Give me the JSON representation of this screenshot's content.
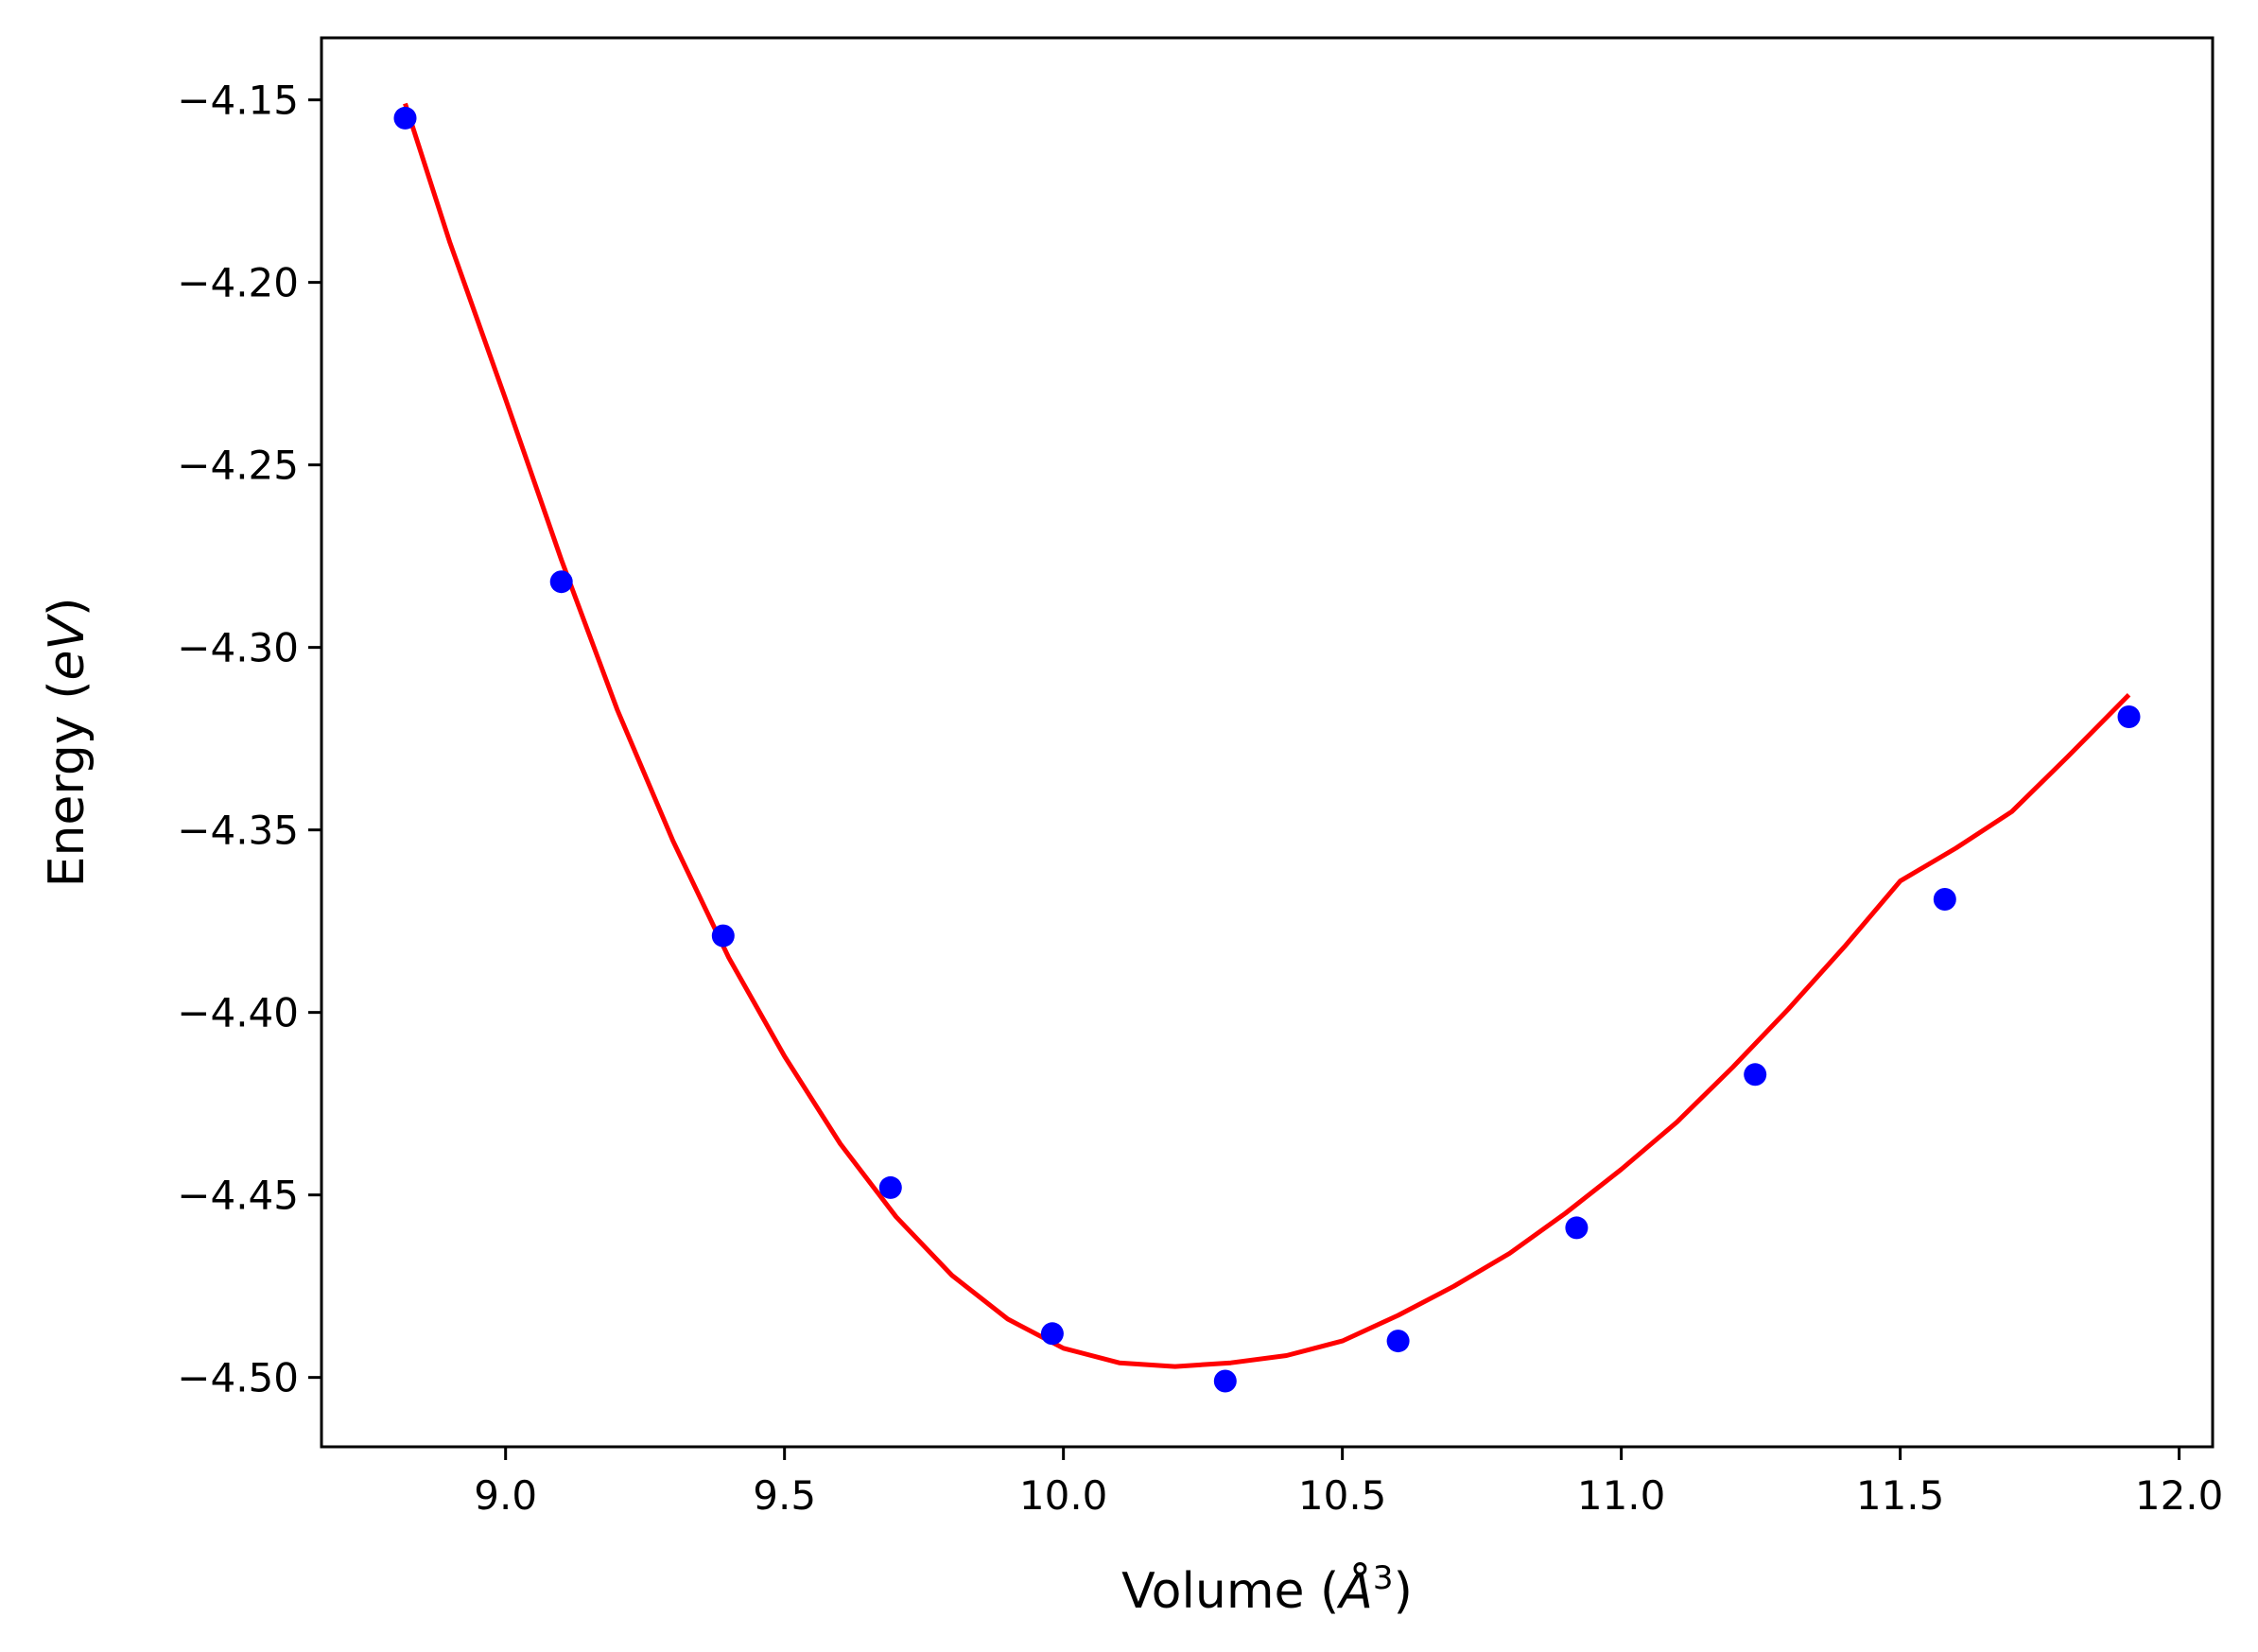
{
  "chart_data": {
    "type": "scatter",
    "xlabel_main": "Volume (",
    "xlabel_unit": "Å",
    "xlabel_exp": "3",
    "xlabel_close": ")",
    "ylabel_main": "Energy (",
    "ylabel_unit": "eV",
    "ylabel_close": ")",
    "xlim": [
      8.67,
      12.06
    ],
    "ylim": [
      -4.519,
      -4.133
    ],
    "xticks": [
      9.0,
      9.5,
      10.0,
      10.5,
      11.0,
      11.5,
      12.0
    ],
    "xtick_labels": [
      "9.0",
      "9.5",
      "10.0",
      "10.5",
      "11.0",
      "11.5",
      "12.0"
    ],
    "yticks": [
      -4.15,
      -4.2,
      -4.25,
      -4.3,
      -4.35,
      -4.4,
      -4.45,
      -4.5
    ],
    "ytick_labels": [
      "−4.15",
      "−4.20",
      "−4.25",
      "−4.30",
      "−4.35",
      "−4.40",
      "−4.45",
      "−4.50"
    ],
    "grid": false,
    "series": [
      {
        "kind": "points",
        "color": "#0000ff",
        "x": [
          8.82,
          9.1,
          9.39,
          9.69,
          9.98,
          10.29,
          10.6,
          10.92,
          11.24,
          11.58,
          11.91
        ],
        "y": [
          -4.155,
          -4.282,
          -4.379,
          -4.448,
          -4.488,
          -4.501,
          -4.49,
          -4.459,
          -4.417,
          -4.369,
          -4.319
        ]
      },
      {
        "kind": "fit-line",
        "color": "#ff0000",
        "x": [
          8.82,
          8.9,
          9.0,
          9.1,
          9.2,
          9.3,
          9.4,
          9.5,
          9.6,
          9.7,
          9.8,
          9.9,
          10.0,
          10.1,
          10.2,
          10.3,
          10.4,
          10.5,
          10.6,
          10.7,
          10.8,
          10.9,
          11.0,
          11.1,
          11.2,
          11.3,
          11.4,
          11.5,
          11.6,
          11.7,
          11.8,
          11.91
        ],
        "y": [
          -4.151,
          -4.189,
          -4.232,
          -4.276,
          -4.317,
          -4.353,
          -4.385,
          -4.412,
          -4.436,
          -4.456,
          -4.472,
          -4.484,
          -4.492,
          -4.496,
          -4.497,
          -4.496,
          -4.494,
          -4.49,
          -4.483,
          -4.475,
          -4.466,
          -4.455,
          -4.443,
          -4.43,
          -4.415,
          -4.399,
          -4.382,
          -4.364,
          -4.355,
          -4.345,
          -4.33,
          -4.313
        ]
      }
    ]
  }
}
